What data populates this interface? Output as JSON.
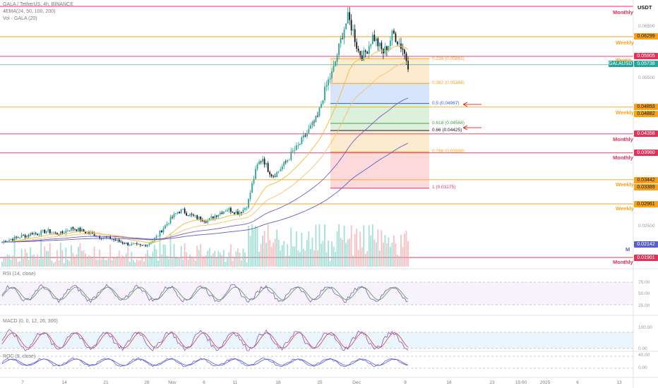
{
  "header": {
    "symbol": "GALA / TetherUS, 4h, BINANCE",
    "ema_legend": "4EMA(24, 50, 100, 200)",
    "vol_legend": "Vol · GALA (20)",
    "currency": "USDT"
  },
  "colors": {
    "up": "#26a69a",
    "down": "#131722",
    "monthly": "#e0325b",
    "weekly": "#f7a21b",
    "ema24": "#f7b731",
    "ema50": "#f5c16c",
    "ema100": "#7e57c2",
    "ema200": "#5b5fc7",
    "fib_top": "#fde8c8",
    "fib_blue": "#cfe0fb",
    "fib_green": "#d5efd6",
    "fib_red": "#fbd3d6"
  },
  "price_tags": [
    {
      "label": "0.06299",
      "color": "#f7a21b"
    },
    {
      "label": "0.05905",
      "color": "#e0325b"
    },
    {
      "label": "GALAUSDT",
      "color": "#26a69a"
    },
    {
      "label": "0.05738",
      "color": "#26a69a"
    },
    {
      "label": "0.04893",
      "color": "#f7a21b"
    },
    {
      "label": "0.04882",
      "color": "#f7a21b"
    },
    {
      "label": "0.04358",
      "color": "#e0325b"
    },
    {
      "label": "0.03980",
      "color": "#e0325b"
    },
    {
      "label": "0.03442",
      "color": "#f7a21b"
    },
    {
      "label": "0.03389",
      "color": "#f7a21b"
    },
    {
      "label": "0.02961",
      "color": "#f7a21b"
    },
    {
      "label": "0.02142",
      "color": "#5b5fc7"
    },
    {
      "label": "0.01901",
      "color": "#e0325b"
    }
  ],
  "level_labels": [
    {
      "text": "Monthly",
      "color": "#e0325b"
    },
    {
      "text": "Weekly",
      "color": "#f7a21b"
    },
    {
      "text": "Weekly",
      "color": "#f7a21b"
    },
    {
      "text": "Weekly",
      "color": "#f7a21b"
    },
    {
      "text": "Monthly",
      "color": "#e0325b"
    },
    {
      "text": "Monthly",
      "color": "#e0325b"
    },
    {
      "text": "Weekly",
      "color": "#f7a21b"
    },
    {
      "text": "Weekly",
      "color": "#f7a21b"
    },
    {
      "text": "Monthly",
      "color": "#e0325b"
    },
    {
      "text": "M",
      "color": "#5b5fc7"
    }
  ],
  "y_axis_ticks": [
    "0.06500",
    "0.05500",
    "0.02500"
  ],
  "fib_labels": [
    {
      "text": "0.236 (0.05861)",
      "color": "#f7a21b"
    },
    {
      "text": "0.382 (0.05366)",
      "color": "#f7a21b"
    },
    {
      "text": "0.5 (0.04967)",
      "color": "#2962ff"
    },
    {
      "text": "0.618 (0.04568)",
      "color": "#43a047"
    },
    {
      "text": "0.66 (0.04425)",
      "color": "#131722"
    },
    {
      "text": "0.786 (0.03998)",
      "color": "#f7a21b"
    },
    {
      "text": "1 (0.03275)",
      "color": "#e0325b"
    }
  ],
  "rsi": {
    "legend": "RSI (14, close)",
    "ticks": [
      "75.00",
      "50.00",
      "25.00"
    ]
  },
  "stoch": {
    "legend": "MACD (0, 0, 12, 26, 300)",
    "ticks": [
      "100.00",
      "0.00"
    ]
  },
  "roc": {
    "legend": "ROC (9, close)",
    "ticks": [
      "40.00",
      "0.00"
    ]
  },
  "x_axis": [
    "7",
    "14",
    "21",
    "28",
    "Nov",
    "6",
    "11",
    "18",
    "25",
    "Dec",
    "9",
    "16",
    "23",
    "15:00",
    "2025",
    "6",
    "13"
  ],
  "chart_data": {
    "type": "candlestick",
    "currency": "USDT",
    "ylim": [
      0.0185,
      0.07
    ],
    "levels": [
      {
        "price": 0.06299,
        "kind": "Weekly"
      },
      {
        "price": 0.05905,
        "kind": "Monthly"
      },
      {
        "price": 0.04893,
        "kind": "Weekly"
      },
      {
        "price": 0.04358,
        "kind": "Monthly"
      },
      {
        "price": 0.0398,
        "kind": "Monthly"
      },
      {
        "price": 0.03442,
        "kind": "Weekly"
      },
      {
        "price": 0.02961,
        "kind": "Weekly"
      },
      {
        "price": 0.01901,
        "kind": "Monthly"
      }
    ],
    "last_price": 0.05738,
    "fib_retracement": [
      {
        "ratio": 0.236,
        "price": 0.05861
      },
      {
        "ratio": 0.382,
        "price": 0.05366
      },
      {
        "ratio": 0.5,
        "price": 0.04967
      },
      {
        "ratio": 0.618,
        "price": 0.04568
      },
      {
        "ratio": 0.66,
        "price": 0.04425
      },
      {
        "ratio": 0.786,
        "price": 0.03998
      },
      {
        "ratio": 1,
        "price": 0.03275
      }
    ],
    "close_path": [
      0.022,
      0.0224,
      0.0226,
      0.0229,
      0.0232,
      0.0233,
      0.0238,
      0.0236,
      0.024,
      0.0242,
      0.0239,
      0.0236,
      0.0238,
      0.0244,
      0.0248,
      0.0245,
      0.0242,
      0.0238,
      0.0236,
      0.0233,
      0.023,
      0.0228,
      0.0226,
      0.0222,
      0.0219,
      0.0216,
      0.0214,
      0.0213,
      0.0212,
      0.0216,
      0.0222,
      0.0232,
      0.0246,
      0.0258,
      0.027,
      0.028,
      0.0283,
      0.0276,
      0.0272,
      0.0268,
      0.0266,
      0.0262,
      0.027,
      0.0276,
      0.0281,
      0.0286,
      0.0282,
      0.0279,
      0.0283,
      0.0296,
      0.034,
      0.0375,
      0.0388,
      0.0366,
      0.0352,
      0.036,
      0.0372,
      0.0385,
      0.04,
      0.041,
      0.0425,
      0.044,
      0.0455,
      0.047,
      0.051,
      0.054,
      0.056,
      0.06,
      0.064,
      0.0668,
      0.0642,
      0.0602,
      0.059,
      0.0608,
      0.0632,
      0.0615,
      0.0598,
      0.0612,
      0.0638,
      0.062,
      0.0605,
      0.0574
    ]
  }
}
